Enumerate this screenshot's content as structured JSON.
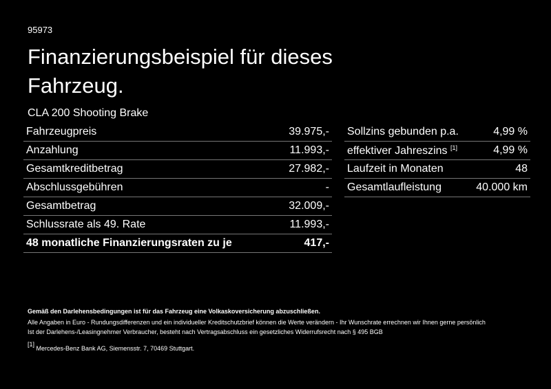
{
  "header": {
    "id": "95973",
    "title": "Finanzierungsbeispiel für dieses Fahrzeug.",
    "model": "CLA 200 Shooting Brake"
  },
  "left_table": {
    "rows": [
      {
        "label": "Fahrzeugpreis",
        "value": "39.975,-"
      },
      {
        "label": "Anzahlung",
        "value": "11.993,-"
      },
      {
        "label": "Gesamtkreditbetrag",
        "value": "27.982,-"
      },
      {
        "label": "Abschlussgebühren",
        "value": "-"
      },
      {
        "label": "Gesamtbetrag",
        "value": "32.009,-"
      },
      {
        "label": "Schlussrate als 49. Rate",
        "value": "11.993,-"
      },
      {
        "label": "48 monatliche Finanzierungsraten zu je",
        "value": "417,-"
      }
    ]
  },
  "right_table": {
    "rows": [
      {
        "label": "Sollzins gebunden p.a.",
        "value": "4,99 %"
      },
      {
        "label": "effektiver Jahreszins",
        "note": "[1]",
        "value": "4,99 %"
      },
      {
        "label": "Laufzeit in Monaten",
        "value": "48"
      },
      {
        "label": "Gesamtlaufleistung",
        "value": "40.000 km"
      }
    ]
  },
  "footer": {
    "bold_note": "Gemäß den Darlehensbedingungen ist für das Fahrzeug eine Volkaskoversicherung abzuschließen.",
    "lines": [
      "Alle Angaben in Euro - Rundungsdifferenzen und ein individueller Kreditschutzbrief können die Werte verändern - Ihr Wunschrate errechnen wir Ihnen gerne persönlich",
      "Ist der Darlehens-/Leasingnehmer Verbraucher, besteht nach Vertragsabschluss ein gesetzliches Widerrufsrecht nach § 495 BGB"
    ],
    "footnote": {
      "marker": "[1]",
      "text": "Mercedes-Benz Bank AG, Siemensstr. 7, 70469 Stuttgart."
    }
  }
}
